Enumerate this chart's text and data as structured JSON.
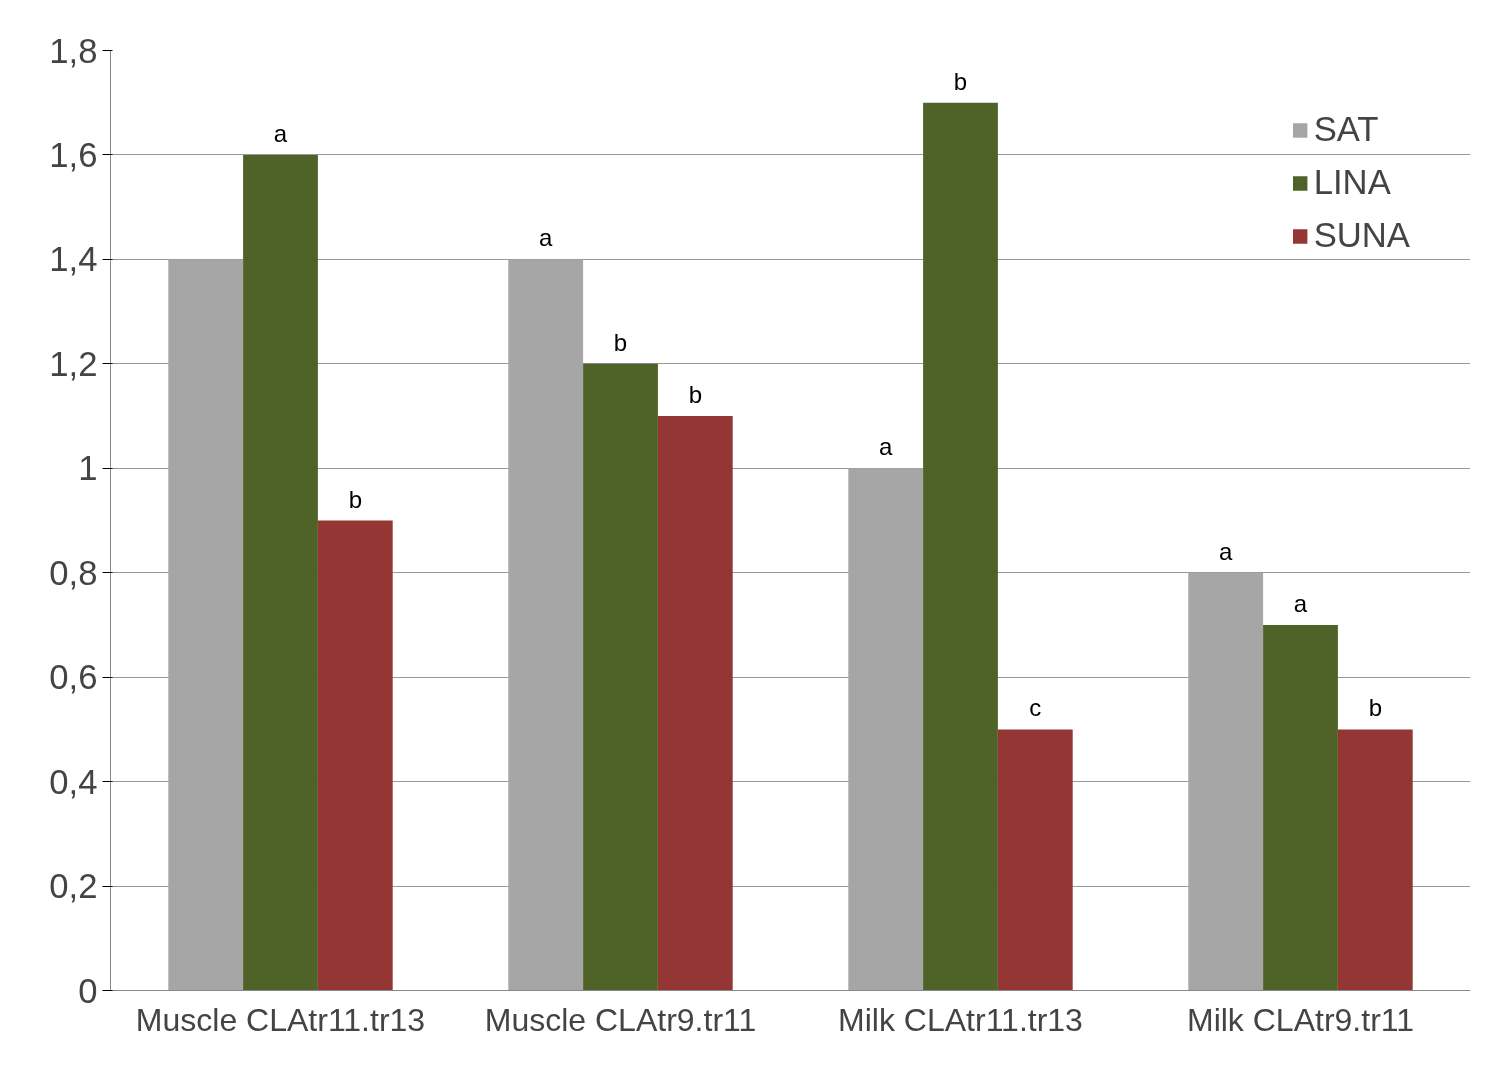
{
  "chart_data": {
    "type": "bar",
    "categories": [
      "Muscle CLAtr11.tr13",
      "Muscle CLAtr9.tr11",
      "Milk CLAtr11.tr13",
      "Milk CLAtr9.tr11"
    ],
    "series": [
      {
        "name": "SAT",
        "color": "#a6a6a6",
        "values": [
          1.4,
          1.4,
          1.0,
          0.8
        ],
        "value_labels": [
          null,
          "a",
          "a",
          "a"
        ]
      },
      {
        "name": "LINA",
        "color": "#4f6228",
        "values": [
          1.6,
          1.2,
          1.7,
          0.7
        ],
        "value_labels": [
          "a",
          "b",
          "b",
          "a"
        ]
      },
      {
        "name": "SUNA",
        "color": "#943634",
        "values": [
          0.9,
          1.1,
          0.5,
          0.5
        ],
        "value_labels": [
          "b",
          "b",
          "c",
          "b"
        ]
      }
    ],
    "ylim": [
      0,
      1.8
    ],
    "yticks": [
      0,
      {
        "value": 0.2,
        "label": "0,2"
      },
      {
        "value": 0.4,
        "label": "0,4"
      },
      {
        "value": 0.6,
        "label": "0,6"
      },
      {
        "value": 0.8,
        "label": "0,8"
      },
      1,
      {
        "value": 1.2,
        "label": "1,2"
      },
      {
        "value": 1.4,
        "label": "1,4"
      },
      {
        "value": 1.6,
        "label": "1,6"
      },
      {
        "value": 1.8,
        "label": "1,8"
      }
    ],
    "grid": "y",
    "legend": "top right"
  }
}
